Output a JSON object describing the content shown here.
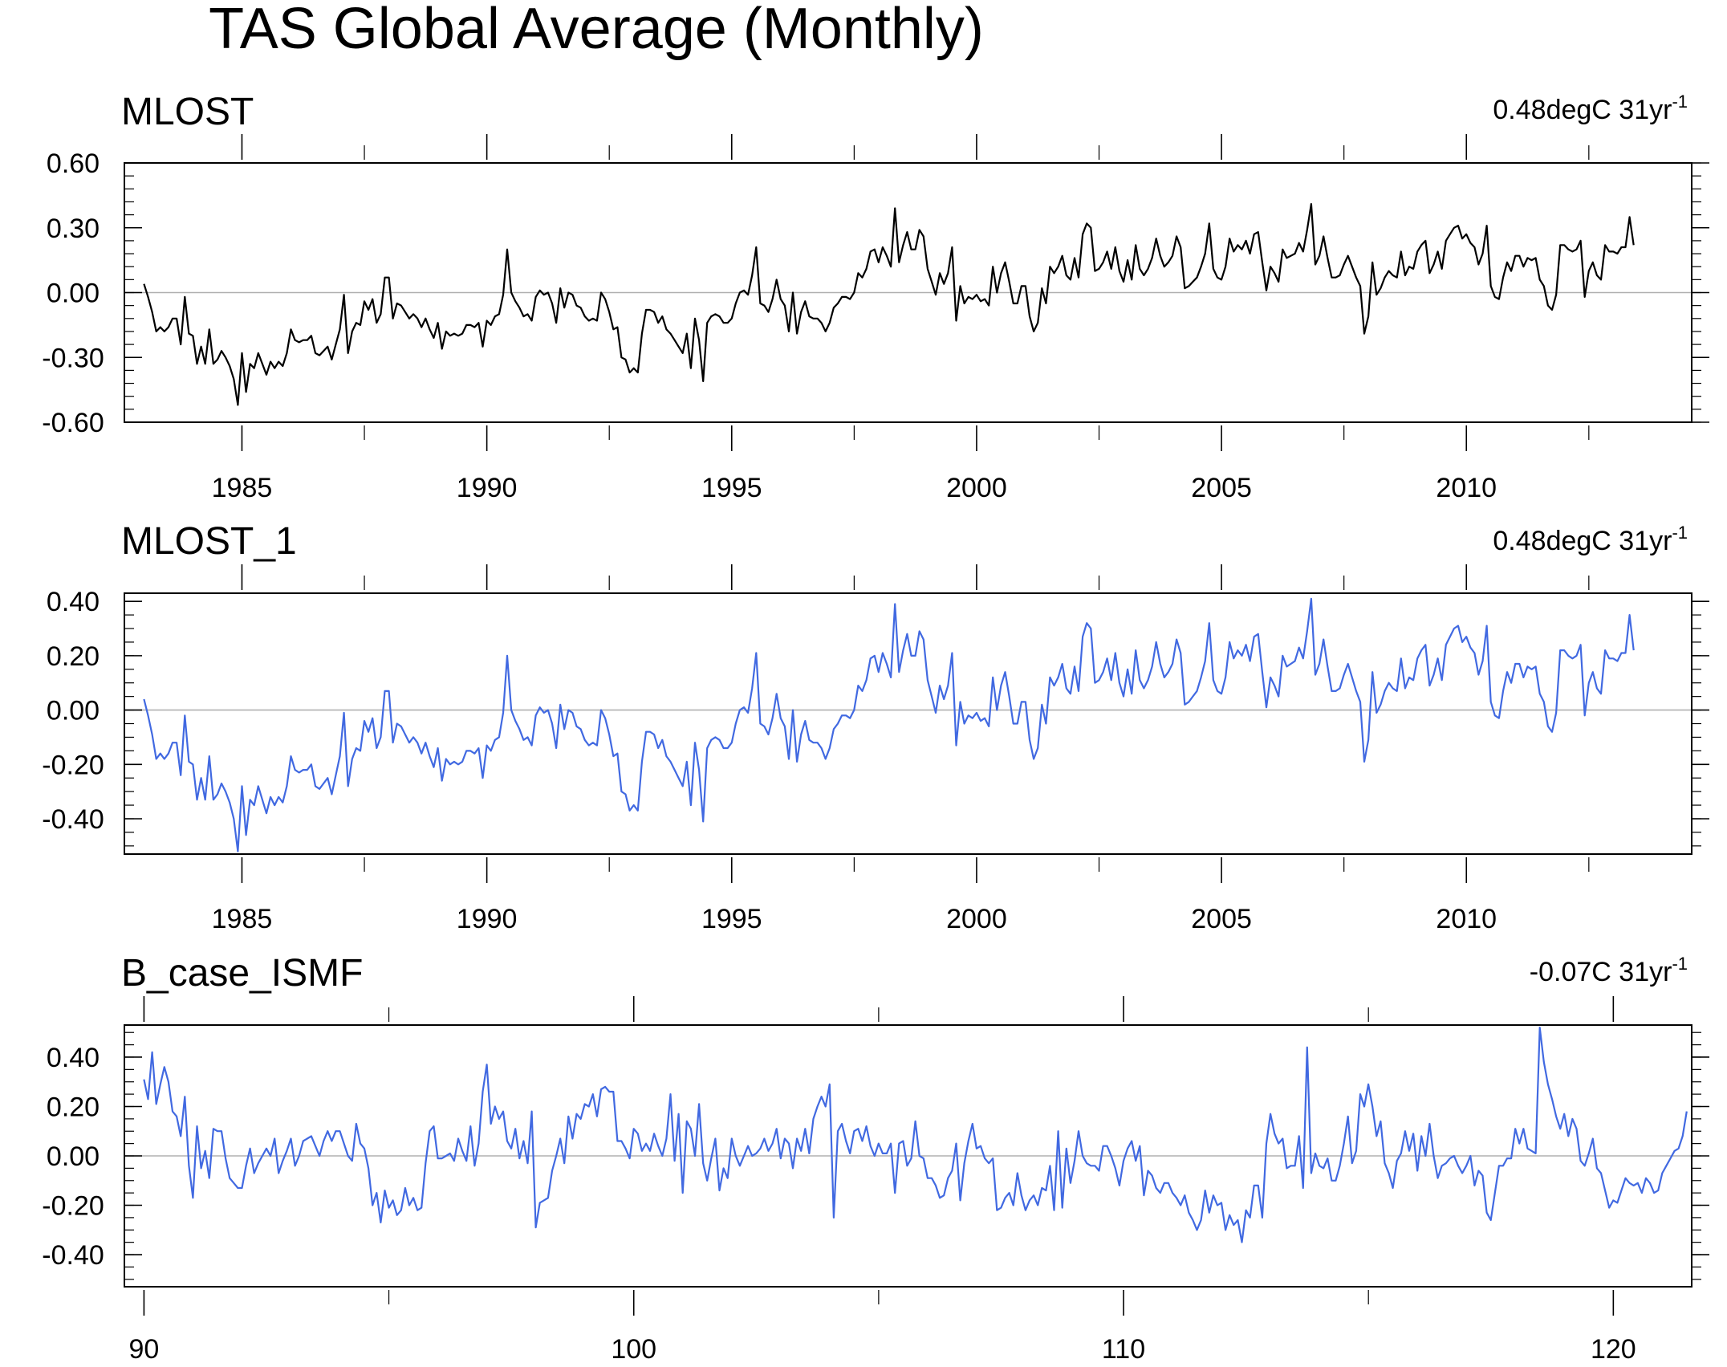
{
  "figure": {
    "title": "TAS Global Average (Monthly)"
  },
  "chart_data": [
    {
      "type": "line",
      "title": "MLOST",
      "trend_text": "0.48degC 31yr",
      "trend_exponent": "-1",
      "line_color": "#000000",
      "xlim": [
        1982.6,
        2014.6
      ],
      "ylim": [
        -0.6,
        0.6
      ],
      "x_ticks": [
        1985,
        1990,
        1995,
        2000,
        2005,
        2010
      ],
      "x_tick_labels": [
        "1985",
        "1990",
        "1995",
        "2000",
        "2005",
        "2010"
      ],
      "y_ticks": [
        -0.6,
        -0.3,
        0.0,
        0.3,
        0.6
      ],
      "y_tick_labels": [
        "-0.60",
        "-0.30",
        "0.00",
        "0.30",
        "0.60"
      ],
      "y_minor_step": 0.06,
      "x_start": 1983.0,
      "x_step": 0.08333,
      "series": [
        {
          "name": "MLOST",
          "key": "mlost"
        }
      ]
    },
    {
      "type": "line",
      "title": "MLOST_1",
      "trend_text": "0.48degC 31yr",
      "trend_exponent": "-1",
      "line_color": "#4169e1",
      "xlim": [
        1982.6,
        2014.6
      ],
      "ylim": [
        -0.53,
        0.43
      ],
      "x_ticks": [
        1985,
        1990,
        1995,
        2000,
        2005,
        2010
      ],
      "x_tick_labels": [
        "1985",
        "1990",
        "1995",
        "2000",
        "2005",
        "2010"
      ],
      "y_ticks": [
        -0.4,
        -0.2,
        0.0,
        0.2,
        0.4
      ],
      "y_tick_labels": [
        "-0.40",
        "-0.20",
        "0.00",
        "0.20",
        "0.40"
      ],
      "y_minor_step": 0.05,
      "x_start": 1983.0,
      "x_step": 0.08333,
      "series": [
        {
          "name": "MLOST_1",
          "key": "mlost"
        }
      ]
    },
    {
      "type": "line",
      "title": "B_case_ISMF",
      "trend_text": "-0.07C 31yr",
      "trend_exponent": "-1",
      "line_color": "#4169e1",
      "xlim": [
        89.6,
        121.6
      ],
      "ylim": [
        -0.53,
        0.53
      ],
      "x_ticks": [
        90,
        100,
        110,
        120
      ],
      "x_tick_labels": [
        "90",
        "100",
        "110",
        "120"
      ],
      "y_ticks": [
        -0.4,
        -0.2,
        0.0,
        0.2,
        0.4
      ],
      "y_tick_labels": [
        "-0.40",
        "-0.20",
        "0.00",
        "0.20",
        "0.40"
      ],
      "y_minor_step": 0.05,
      "x_start": 90.0,
      "x_step": 0.08333,
      "series": [
        {
          "name": "B_case_ISMF",
          "key": "ismf"
        }
      ]
    }
  ],
  "series_values": {
    "mlost": [
      0.04,
      -0.02,
      -0.09,
      -0.18,
      -0.16,
      -0.18,
      -0.16,
      -0.12,
      -0.12,
      -0.24,
      -0.02,
      -0.19,
      -0.2,
      -0.33,
      -0.25,
      -0.33,
      -0.17,
      -0.33,
      -0.31,
      -0.27,
      -0.3,
      -0.34,
      -0.4,
      -0.52,
      -0.28,
      -0.46,
      -0.33,
      -0.35,
      -0.28,
      -0.33,
      -0.38,
      -0.32,
      -0.35,
      -0.32,
      -0.34,
      -0.28,
      -0.17,
      -0.22,
      -0.23,
      -0.22,
      -0.22,
      -0.2,
      -0.28,
      -0.29,
      -0.27,
      -0.25,
      -0.31,
      -0.24,
      -0.17,
      -0.01,
      -0.28,
      -0.18,
      -0.14,
      -0.15,
      -0.04,
      -0.08,
      -0.03,
      -0.14,
      -0.1,
      0.07,
      0.07,
      -0.12,
      -0.05,
      -0.06,
      -0.09,
      -0.12,
      -0.1,
      -0.12,
      -0.16,
      -0.12,
      -0.17,
      -0.21,
      -0.14,
      -0.26,
      -0.18,
      -0.2,
      -0.19,
      -0.2,
      -0.19,
      -0.15,
      -0.15,
      -0.16,
      -0.14,
      -0.25,
      -0.13,
      -0.15,
      -0.11,
      -0.1,
      -0.01,
      0.2,
      0.0,
      -0.04,
      -0.07,
      -0.11,
      -0.1,
      -0.13,
      -0.02,
      0.01,
      -0.01,
      0.0,
      -0.05,
      -0.14,
      0.02,
      -0.07,
      0.0,
      -0.01,
      -0.06,
      -0.07,
      -0.11,
      -0.13,
      -0.12,
      -0.13,
      0.0,
      -0.03,
      -0.09,
      -0.17,
      -0.16,
      -0.3,
      -0.31,
      -0.37,
      -0.35,
      -0.37,
      -0.19,
      -0.08,
      -0.08,
      -0.09,
      -0.14,
      -0.11,
      -0.17,
      -0.19,
      -0.22,
      -0.25,
      -0.28,
      -0.19,
      -0.35,
      -0.12,
      -0.22,
      -0.41,
      -0.14,
      -0.11,
      -0.1,
      -0.11,
      -0.14,
      -0.14,
      -0.12,
      -0.05,
      0.0,
      0.01,
      -0.01,
      0.08,
      0.21,
      -0.05,
      -0.06,
      -0.09,
      -0.03,
      0.06,
      -0.03,
      -0.06,
      -0.18,
      0.0,
      -0.19,
      -0.09,
      -0.04,
      -0.11,
      -0.12,
      -0.12,
      -0.14,
      -0.18,
      -0.14,
      -0.07,
      -0.05,
      -0.02,
      -0.02,
      -0.03,
      0.0,
      0.09,
      0.07,
      0.11,
      0.19,
      0.2,
      0.14,
      0.21,
      0.17,
      0.12,
      0.39,
      0.14,
      0.22,
      0.28,
      0.2,
      0.2,
      0.29,
      0.26,
      0.11,
      0.05,
      -0.01,
      0.09,
      0.04,
      0.09,
      0.21,
      -0.13,
      0.03,
      -0.05,
      -0.02,
      -0.03,
      -0.01,
      -0.04,
      -0.03,
      -0.06,
      0.12,
      0.0,
      0.09,
      0.14,
      0.05,
      -0.05,
      -0.05,
      0.03,
      0.03,
      -0.11,
      -0.18,
      -0.14,
      0.02,
      -0.05,
      0.12,
      0.09,
      0.12,
      0.17,
      0.08,
      0.06,
      0.16,
      0.07,
      0.27,
      0.32,
      0.3,
      0.1,
      0.11,
      0.14,
      0.19,
      0.11,
      0.21,
      0.1,
      0.05,
      0.15,
      0.06,
      0.22,
      0.11,
      0.08,
      0.11,
      0.16,
      0.25,
      0.17,
      0.12,
      0.14,
      0.17,
      0.26,
      0.21,
      0.02,
      0.03,
      0.05,
      0.07,
      0.12,
      0.18,
      0.32,
      0.11,
      0.07,
      0.06,
      0.12,
      0.25,
      0.19,
      0.22,
      0.2,
      0.24,
      0.18,
      0.27,
      0.28,
      0.14,
      0.01,
      0.12,
      0.09,
      0.05,
      0.2,
      0.16,
      0.17,
      0.18,
      0.23,
      0.19,
      0.29,
      0.41,
      0.13,
      0.17,
      0.26,
      0.16,
      0.07,
      0.07,
      0.08,
      0.13,
      0.17,
      0.12,
      0.07,
      0.03,
      -0.19,
      -0.11,
      0.14,
      -0.01,
      0.02,
      0.07,
      0.1,
      0.08,
      0.07,
      0.19,
      0.08,
      0.12,
      0.11,
      0.19,
      0.22,
      0.24,
      0.09,
      0.13,
      0.19,
      0.11,
      0.24,
      0.27,
      0.3,
      0.31,
      0.25,
      0.27,
      0.23,
      0.21,
      0.13,
      0.18,
      0.31,
      0.03,
      -0.02,
      -0.03,
      0.07,
      0.14,
      0.1,
      0.17,
      0.17,
      0.12,
      0.16,
      0.15,
      0.16,
      0.06,
      0.03,
      -0.06,
      -0.08,
      -0.01,
      0.22,
      0.22,
      0.2,
      0.19,
      0.2,
      0.24,
      -0.02,
      0.1,
      0.14,
      0.08,
      0.06,
      0.22,
      0.19,
      0.19,
      0.18,
      0.21,
      0.21,
      0.35,
      0.22
    ],
    "ismf": [
      0.31,
      0.23,
      0.42,
      0.21,
      0.29,
      0.36,
      0.3,
      0.18,
      0.16,
      0.08,
      0.24,
      -0.04,
      -0.17,
      0.12,
      -0.05,
      0.02,
      -0.09,
      0.11,
      0.1,
      0.1,
      -0.01,
      -0.09,
      -0.11,
      -0.13,
      -0.13,
      -0.04,
      0.03,
      -0.07,
      -0.03,
      0.0,
      0.03,
      0.0,
      0.07,
      -0.07,
      -0.02,
      0.02,
      0.07,
      -0.04,
      0.0,
      0.06,
      0.07,
      0.08,
      0.04,
      0.0,
      0.06,
      0.1,
      0.06,
      0.1,
      0.1,
      0.05,
      0.0,
      -0.02,
      0.13,
      0.05,
      0.03,
      -0.05,
      -0.2,
      -0.15,
      -0.27,
      -0.14,
      -0.21,
      -0.18,
      -0.24,
      -0.22,
      -0.13,
      -0.2,
      -0.17,
      -0.22,
      -0.21,
      -0.03,
      0.1,
      0.12,
      -0.01,
      -0.01,
      0.0,
      0.01,
      -0.02,
      0.07,
      0.02,
      -0.02,
      0.12,
      -0.04,
      0.05,
      0.26,
      0.37,
      0.13,
      0.2,
      0.15,
      0.18,
      0.06,
      0.03,
      0.11,
      -0.01,
      0.06,
      -0.03,
      0.18,
      -0.29,
      -0.19,
      -0.18,
      -0.17,
      -0.06,
      0.0,
      0.07,
      -0.03,
      0.16,
      0.07,
      0.17,
      0.15,
      0.21,
      0.2,
      0.25,
      0.16,
      0.27,
      0.28,
      0.26,
      0.26,
      0.06,
      0.06,
      0.03,
      -0.01,
      0.11,
      0.09,
      0.02,
      0.05,
      0.02,
      0.09,
      0.04,
      0.0,
      0.07,
      0.25,
      -0.02,
      0.17,
      -0.15,
      0.14,
      0.11,
      0.0,
      0.21,
      -0.03,
      -0.1,
      -0.01,
      0.07,
      -0.14,
      -0.05,
      -0.09,
      0.07,
      0.0,
      -0.04,
      0.0,
      0.04,
      0.0,
      0.01,
      0.03,
      0.07,
      0.02,
      0.05,
      0.11,
      -0.01,
      0.07,
      0.05,
      -0.05,
      0.07,
      0.02,
      0.11,
      0.01,
      0.15,
      0.2,
      0.24,
      0.2,
      0.29,
      -0.25,
      0.1,
      0.13,
      0.06,
      0.01,
      0.1,
      0.11,
      0.06,
      0.12,
      0.04,
      0.0,
      0.05,
      0.01,
      0.01,
      0.05,
      -0.15,
      0.05,
      0.06,
      -0.04,
      -0.01,
      0.14,
      0.0,
      -0.01,
      -0.09,
      -0.09,
      -0.12,
      -0.17,
      -0.16,
      -0.09,
      -0.06,
      0.05,
      -0.18,
      -0.03,
      0.06,
      0.13,
      0.03,
      0.04,
      -0.01,
      -0.03,
      -0.01,
      -0.22,
      -0.21,
      -0.17,
      -0.15,
      -0.2,
      -0.07,
      -0.16,
      -0.22,
      -0.18,
      -0.16,
      -0.2,
      -0.13,
      -0.14,
      -0.04,
      -0.22,
      0.1,
      -0.21,
      0.03,
      -0.11,
      -0.02,
      0.1,
      0.0,
      -0.03,
      -0.04,
      -0.04,
      -0.06,
      0.04,
      0.04,
      0.0,
      -0.05,
      -0.12,
      -0.02,
      0.03,
      0.06,
      -0.02,
      0.04,
      -0.16,
      -0.06,
      -0.08,
      -0.13,
      -0.15,
      -0.11,
      -0.11,
      -0.15,
      -0.17,
      -0.2,
      -0.16,
      -0.23,
      -0.26,
      -0.3,
      -0.26,
      -0.14,
      -0.23,
      -0.16,
      -0.2,
      -0.19,
      -0.3,
      -0.24,
      -0.28,
      -0.26,
      -0.35,
      -0.22,
      -0.25,
      -0.12,
      -0.12,
      -0.25,
      0.05,
      0.17,
      0.09,
      0.05,
      0.07,
      -0.05,
      -0.04,
      -0.04,
      0.08,
      -0.13,
      0.44,
      -0.07,
      0.01,
      -0.04,
      -0.05,
      -0.01,
      -0.1,
      -0.1,
      -0.04,
      0.05,
      0.16,
      -0.03,
      0.02,
      0.25,
      0.2,
      0.29,
      0.2,
      0.08,
      0.14,
      -0.03,
      -0.07,
      -0.13,
      -0.02,
      0.01,
      0.1,
      0.02,
      0.09,
      -0.06,
      0.08,
      0.0,
      0.13,
      0.0,
      -0.09,
      -0.04,
      -0.03,
      -0.01,
      0.0,
      -0.04,
      -0.07,
      -0.04,
      0.0,
      -0.12,
      -0.06,
      -0.08,
      -0.23,
      -0.26,
      -0.15,
      -0.04,
      -0.04,
      -0.01,
      -0.01,
      0.11,
      0.05,
      0.11,
      0.03,
      0.02,
      0.01,
      0.52,
      0.38,
      0.29,
      0.23,
      0.16,
      0.11,
      0.17,
      0.08,
      0.15,
      0.11,
      -0.02,
      -0.04,
      0.01,
      0.07,
      -0.05,
      -0.07,
      -0.14,
      -0.21,
      -0.18,
      -0.19,
      -0.14,
      -0.09,
      -0.11,
      -0.12,
      -0.11,
      -0.15,
      -0.09,
      -0.11,
      -0.15,
      -0.14,
      -0.07,
      -0.04,
      -0.01,
      0.02,
      0.03,
      0.08,
      0.18
    ]
  }
}
